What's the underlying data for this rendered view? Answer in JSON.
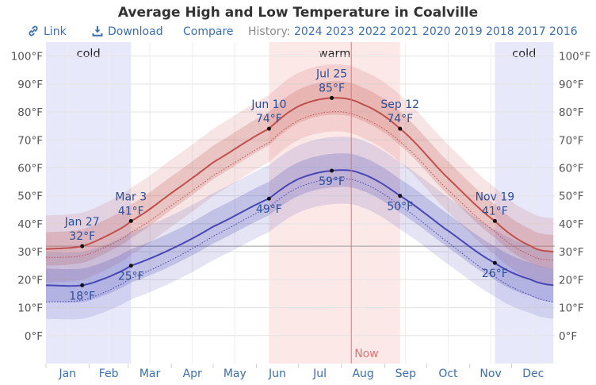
{
  "title": "Average High and Low Temperature in Coalville",
  "toolbar": {
    "link": "Link",
    "download": "Download",
    "compare": "Compare",
    "history_label": "History:",
    "years": [
      "2024",
      "2023",
      "2022",
      "2021",
      "2020",
      "2019",
      "2018",
      "2017",
      "2016"
    ]
  },
  "colors": {
    "high": "#c0504d",
    "low": "#4747b5",
    "warm_bg": "#fde8e8",
    "cold_bg": "#e8e8fb",
    "link": "#3a6fb0",
    "now_line": "#e37272"
  },
  "chart_data": {
    "type": "line",
    "title": "Average High and Low Temperature in Coalville",
    "unit": "°F",
    "ylim": [
      -10,
      105
    ],
    "y_ticks": [
      0,
      10,
      20,
      30,
      40,
      50,
      60,
      70,
      80,
      90,
      100
    ],
    "y_tick_labels": [
      "0°F",
      "10°F",
      "20°F",
      "30°F",
      "40°F",
      "50°F",
      "60°F",
      "70°F",
      "80°F",
      "90°F",
      "100°F"
    ],
    "months": [
      "Jan",
      "Feb",
      "Mar",
      "Apr",
      "May",
      "Jun",
      "Jul",
      "Aug",
      "Sep",
      "Oct",
      "Nov",
      "Dec"
    ],
    "grid": true,
    "seasons": [
      {
        "label": "cold",
        "start": "Jan 1",
        "end": "Mar 3"
      },
      {
        "label": "warm",
        "start": "Jun 10",
        "end": "Sep 12"
      },
      {
        "label": "cold",
        "start": "Nov 19",
        "end": "Dec 31"
      }
    ],
    "freezing_line": 32,
    "now_label": "Now",
    "now_date": "Aug 8",
    "series": [
      {
        "name": "High",
        "x": [
          "Jan 1",
          "Jan 27",
          "Feb 15",
          "Mar 3",
          "Apr 1",
          "May 1",
          "Jun 10",
          "Jul 1",
          "Jul 25",
          "Aug 15",
          "Sep 12",
          "Oct 15",
          "Nov 19",
          "Dec 15",
          "Dec 31"
        ],
        "values": [
          31,
          32,
          36,
          41,
          51,
          62,
          74,
          82,
          85,
          83,
          74,
          57,
          41,
          32,
          30
        ]
      },
      {
        "name": "Low",
        "x": [
          "Jan 1",
          "Jan 27",
          "Feb 15",
          "Mar 3",
          "Apr 1",
          "May 1",
          "Jun 10",
          "Jul 1",
          "Jul 25",
          "Aug 15",
          "Sep 12",
          "Oct 15",
          "Nov 19",
          "Dec 15",
          "Dec 31"
        ],
        "values": [
          18,
          18,
          21,
          25,
          31,
          39,
          49,
          56,
          59,
          58,
          50,
          38,
          26,
          20,
          18
        ]
      }
    ],
    "annotations": [
      {
        "date": "Jan 27",
        "value": "32°F",
        "series": "High"
      },
      {
        "date": "Jan 27",
        "value": "18°F",
        "series": "Low"
      },
      {
        "date": "Mar 3",
        "value": "41°F",
        "series": "High"
      },
      {
        "date": "Mar 3",
        "value": "25°F",
        "series": "Low"
      },
      {
        "date": "Jun 10",
        "value": "74°F",
        "series": "High"
      },
      {
        "date": "Jun 10",
        "value": "49°F",
        "series": "Low"
      },
      {
        "date": "Jul 25",
        "value": "85°F",
        "series": "High"
      },
      {
        "date": "Jul 25",
        "value": "59°F",
        "series": "Low"
      },
      {
        "date": "Sep 12",
        "value": "74°F",
        "series": "High"
      },
      {
        "date": "Sep 12",
        "value": "50°F",
        "series": "Low"
      },
      {
        "date": "Nov 19",
        "value": "41°F",
        "series": "High"
      },
      {
        "date": "Nov 19",
        "value": "26°F",
        "series": "Low"
      }
    ]
  }
}
